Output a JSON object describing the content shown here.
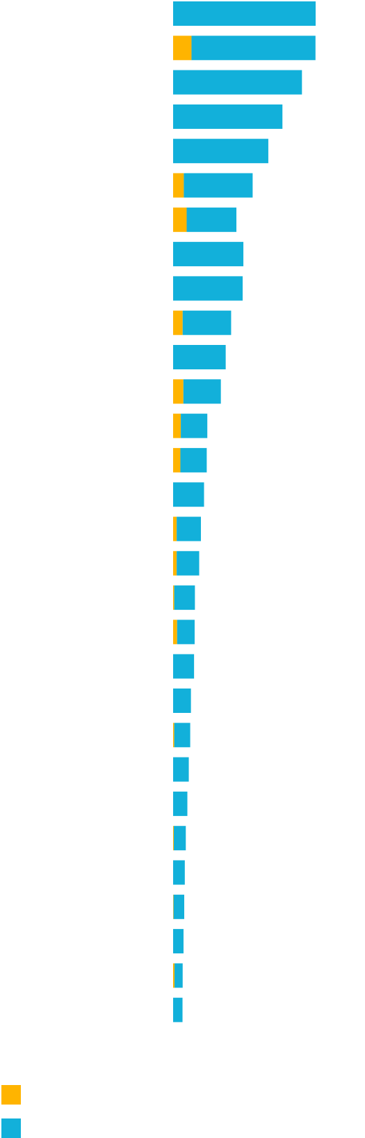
{
  "chart_data": {
    "type": "bar",
    "orientation": "horizontal",
    "stacked": true,
    "title": "",
    "xlabel": "",
    "ylabel": "",
    "grid": false,
    "legend_position": "bottom-left",
    "xlim": [
      0,
      100
    ],
    "categories": [
      "",
      "",
      "",
      "",
      "",
      "",
      "",
      "",
      "",
      "",
      "",
      "",
      "",
      "",
      "",
      "",
      "",
      "",
      "",
      "",
      "",
      "",
      "",
      "",
      "",
      "",
      "",
      "",
      "",
      ""
    ],
    "series": [
      {
        "color": "#FFB400",
        "values": [
          0,
          12.9,
          0,
          0,
          0,
          7.5,
          9.5,
          0,
          0,
          6.7,
          0,
          7.2,
          5.4,
          5.1,
          0,
          2.5,
          2.5,
          0.8,
          2.8,
          0,
          0,
          0.8,
          0,
          0,
          0.5,
          0,
          0.3,
          0,
          1.0,
          0
        ]
      },
      {
        "color": "#12B0DA",
        "values": [
          100,
          87.0,
          90.4,
          76.7,
          66.8,
          48.3,
          34.9,
          49.3,
          48.8,
          34.0,
          36.9,
          26.3,
          18.6,
          18.5,
          21.7,
          17.0,
          15.8,
          14.5,
          12.3,
          14.7,
          12.5,
          11.2,
          11.0,
          10.0,
          8.4,
          8.2,
          7.5,
          7.3,
          5.7,
          6.6
        ]
      }
    ]
  }
}
